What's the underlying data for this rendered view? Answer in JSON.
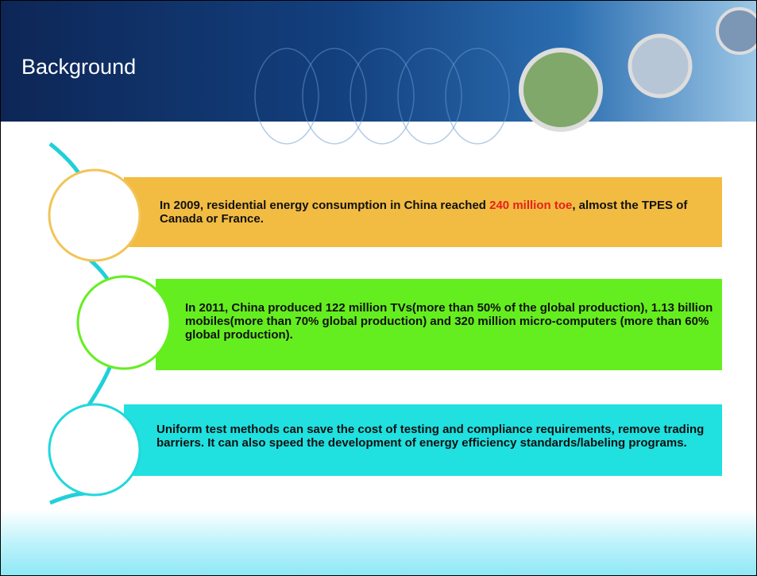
{
  "header": {
    "title": "Background"
  },
  "items": [
    {
      "parts": [
        "In 2009, residential energy consumption in China reached ",
        "240 million toe",
        ", almost the TPES of Canada or France."
      ]
    },
    {
      "parts": [
        "In 2011, China produced 122 million TVs(more than 50% of the global production), 1.13 billion mobiles(more than 70% global production) and 320 million micro-computers (more than 60% global production)."
      ]
    },
    {
      "parts": [
        "Uniform test methods can save the cost of testing and compliance requirements, remove trading barriers. It can also speed the development of energy efficiency standards/labeling programs."
      ]
    }
  ]
}
